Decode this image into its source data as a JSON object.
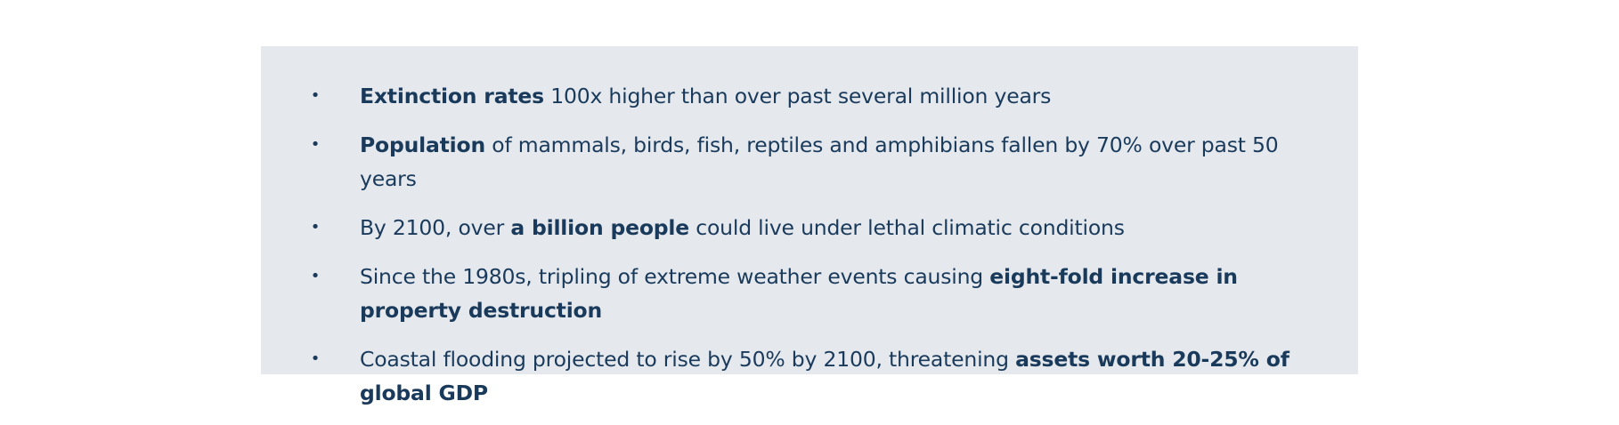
{
  "bullet_symbol": "•",
  "colors": {
    "panel_background": "#e5e9ee",
    "text": "#1a3a5b"
  },
  "items": [
    {
      "segments": [
        {
          "text": "Extinction rates",
          "bold": true
        },
        {
          "text": " 100x higher than over past several million years",
          "bold": false
        }
      ]
    },
    {
      "segments": [
        {
          "text": "Population",
          "bold": true
        },
        {
          "text": " of mammals, birds, fish, reptiles and amphibians fallen by 70% over past 50 years",
          "bold": false
        }
      ]
    },
    {
      "segments": [
        {
          "text": "By 2100, over ",
          "bold": false
        },
        {
          "text": "a billion people",
          "bold": true
        },
        {
          "text": " could live under lethal climatic conditions",
          "bold": false
        }
      ]
    },
    {
      "segments": [
        {
          "text": "Since the 1980s, tripling of extreme weather events causing ",
          "bold": false
        },
        {
          "text": "eight-fold increase in property destruction",
          "bold": true
        }
      ]
    },
    {
      "segments": [
        {
          "text": "Coastal flooding projected to rise by 50% by 2100, threatening ",
          "bold": false
        },
        {
          "text": "assets worth 20-25% of global GDP",
          "bold": true
        }
      ]
    }
  ]
}
